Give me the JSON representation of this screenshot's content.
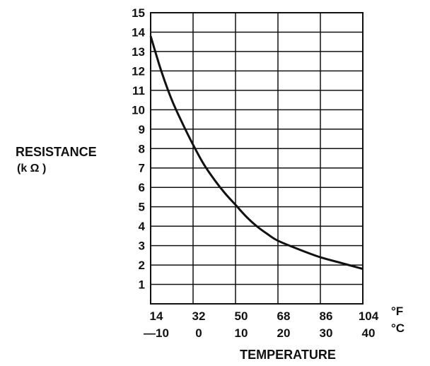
{
  "chart_data": {
    "type": "line",
    "ylabel": "RESISTANCE",
    "ylabel_unit": "(k Ω )",
    "xlabel": "TEMPERATURE",
    "x_unit_f": "°F",
    "x_unit_c": "°C",
    "x_ticks_f": [
      "14",
      "32",
      "50",
      "68",
      "86",
      "104"
    ],
    "x_ticks_c": [
      "—10",
      "0",
      "10",
      "20",
      "30",
      "40"
    ],
    "y_ticks": [
      "1",
      "2",
      "3",
      "4",
      "5",
      "6",
      "7",
      "8",
      "9",
      "10",
      "11",
      "12",
      "13",
      "14",
      "15"
    ],
    "xlim": [
      -10,
      40
    ],
    "ylim": [
      0,
      15
    ],
    "grid": true,
    "series": [
      {
        "x": [
          -10,
          -7.5,
          -5,
          -2.5,
          0,
          2.5,
          5,
          7.5,
          10,
          12.5,
          15,
          17.5,
          20,
          25,
          30,
          35,
          40
        ],
        "y": [
          13.8,
          12.0,
          10.5,
          9.3,
          8.2,
          7.2,
          6.4,
          5.7,
          5.1,
          4.5,
          4.0,
          3.6,
          3.25,
          2.8,
          2.4,
          2.1,
          1.8
        ]
      }
    ]
  }
}
